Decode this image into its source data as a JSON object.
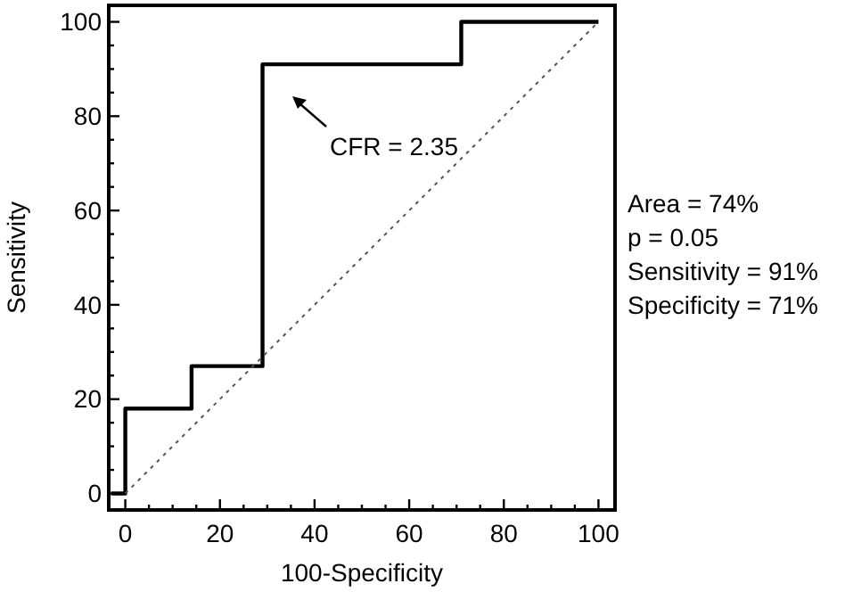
{
  "chart_data": {
    "type": "step",
    "xlabel": "100-Specificity",
    "ylabel": "Sensitivity",
    "xlim": [
      -3.5,
      103.5
    ],
    "ylim": [
      -3.5,
      103.5
    ],
    "xticks": [
      0,
      {
        "value": 5,
        "label": null
      },
      {
        "value": 10,
        "label": null
      },
      {
        "value": 15,
        "label": null
      },
      20,
      {
        "value": 25,
        "label": null
      },
      {
        "value": 30,
        "label": null
      },
      {
        "value": 35,
        "label": null
      },
      40,
      {
        "value": 45,
        "label": null
      },
      {
        "value": 50,
        "label": null
      },
      {
        "value": 55,
        "label": null
      },
      60,
      {
        "value": 65,
        "label": null
      },
      {
        "value": 70,
        "label": null
      },
      {
        "value": 75,
        "label": null
      },
      80,
      {
        "value": 85,
        "label": null
      },
      {
        "value": 90,
        "label": null
      },
      {
        "value": 95,
        "label": null
      },
      100
    ],
    "yticks": [
      0,
      {
        "value": 5,
        "label": null
      },
      {
        "value": 10,
        "label": null
      },
      {
        "value": 15,
        "label": null
      },
      20,
      {
        "value": 25,
        "label": null
      },
      {
        "value": 30,
        "label": null
      },
      {
        "value": 35,
        "label": null
      },
      40,
      {
        "value": 45,
        "label": null
      },
      {
        "value": 50,
        "label": null
      },
      {
        "value": 55,
        "label": null
      },
      60,
      {
        "value": 65,
        "label": null
      },
      {
        "value": 70,
        "label": null
      },
      {
        "value": 75,
        "label": null
      },
      80,
      {
        "value": 85,
        "label": null
      },
      {
        "value": 90,
        "label": null
      },
      {
        "value": 95,
        "label": null
      },
      100
    ],
    "grid": false,
    "marker": "none",
    "series": [
      {
        "color": "#000000",
        "line_style": "solid",
        "x": [
          -3,
          0,
          14,
          29,
          71,
          100
        ],
        "values": [
          0,
          18,
          27,
          91,
          100,
          100
        ]
      },
      {
        "type": "line",
        "color": "#555555",
        "line_style": "dotted",
        "x": [
          0,
          100
        ],
        "values": [
          0,
          100
        ]
      }
    ],
    "annotations": [
      "CFR = 2.35",
      "Area = 74%",
      "p = 0.05",
      "Sensitivity = 91%",
      "Specificity = 71%"
    ]
  }
}
